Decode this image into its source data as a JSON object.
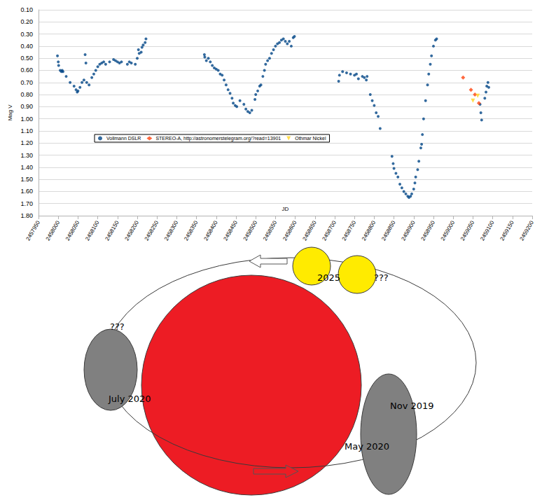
{
  "chart_data": {
    "type": "scatter",
    "x_label": "JD",
    "y_label": "Mag V",
    "xlim": [
      2457950,
      2459200
    ],
    "xticks": [
      2457950,
      2458000,
      2458050,
      2458100,
      2458150,
      2458200,
      2458250,
      2458300,
      2458350,
      2458400,
      2458450,
      2458500,
      2458550,
      2458600,
      2458650,
      2458700,
      2458750,
      2458800,
      2458850,
      2458900,
      2458950,
      2459000,
      2459050,
      2459100,
      2459150,
      2459200
    ],
    "ylim": [
      1.8,
      0.1
    ],
    "yticks": [
      {
        "value": 0.1,
        "label": "0.10"
      },
      {
        "value": 0.2,
        "label": "0.20"
      },
      {
        "value": 0.3,
        "label": "0.30"
      },
      {
        "value": 0.4,
        "label": "0.40"
      },
      {
        "value": 0.5,
        "label": "0.50"
      },
      {
        "value": 0.6,
        "label": "0.60"
      },
      {
        "value": 0.7,
        "label": "0.70"
      },
      {
        "value": 0.8,
        "label": "0.80"
      },
      {
        "value": 0.9,
        "label": "0.90"
      },
      {
        "value": 1.0,
        "label": "1.00"
      },
      {
        "value": 1.1,
        "label": "1.10"
      },
      {
        "value": 1.2,
        "label": "1.20"
      },
      {
        "value": 1.3,
        "label": "1.30"
      },
      {
        "value": 1.4,
        "label": "1.40"
      },
      {
        "value": 1.5,
        "label": "1.50"
      },
      {
        "value": 1.6,
        "label": "1.60"
      },
      {
        "value": 1.7,
        "label": "1.70"
      },
      {
        "value": 1.8,
        "label": "1.80"
      }
    ],
    "grid": true,
    "legend": "center",
    "series": [
      {
        "name": "Vollmann DSLR",
        "color": "#004586",
        "marker": "circle",
        "x": [
          2457998,
          2458000,
          2458001,
          2458005,
          2458008,
          2458010,
          2458012,
          2458020,
          2458030,
          2458040,
          2458045,
          2458048,
          2458050,
          2458055,
          2458060,
          2458065,
          2458068,
          2458070,
          2458072,
          2458078,
          2458085,
          2458090,
          2458095,
          2458100,
          2458105,
          2458110,
          2458115,
          2458120,
          2458130,
          2458140,
          2458145,
          2458150,
          2458155,
          2458160,
          2458175,
          2458180,
          2458185,
          2458195,
          2458200,
          2458203,
          2458205,
          2458210,
          2458212,
          2458215,
          2458220,
          2458222,
          2458370,
          2458371,
          2458375,
          2458380,
          2458385,
          2458390,
          2458395,
          2458400,
          2458405,
          2458410,
          2458415,
          2458420,
          2458425,
          2458430,
          2458435,
          2458440,
          2458443,
          2458448,
          2458452,
          2458460,
          2458470,
          2458475,
          2458480,
          2458485,
          2458490,
          2458498,
          2458500,
          2458505,
          2458510,
          2458513,
          2458518,
          2458522,
          2458525,
          2458530,
          2458535,
          2458540,
          2458545,
          2458550,
          2458555,
          2458560,
          2458565,
          2458570,
          2458575,
          2458580,
          2458585,
          2458590,
          2458595,
          2458598,
          2458710,
          2458712,
          2458720,
          2458730,
          2458740,
          2458750,
          2458755,
          2458760,
          2458770,
          2458775,
          2458780,
          2458782,
          2458790,
          2458795,
          2458800,
          2458805,
          2458810,
          2458815,
          2458845,
          2458848,
          2458850,
          2458855,
          2458860,
          2458865,
          2458870,
          2458875,
          2458880,
          2458885,
          2458888,
          2458892,
          2458895,
          2458900,
          2458903,
          2458905,
          2458910,
          2458913,
          2458918,
          2458920,
          2458922,
          2458925,
          2458930,
          2458935,
          2458938,
          2458942,
          2458945,
          2458950,
          2458955,
          2458958,
          2459068,
          2459070,
          2459072,
          2459080,
          2459083,
          2459085,
          2459088,
          2459090
        ],
        "values": [
          0.48,
          0.53,
          0.56,
          0.6,
          0.61,
          0.6,
          0.61,
          0.65,
          0.7,
          0.73,
          0.76,
          0.78,
          0.77,
          0.74,
          0.7,
          0.68,
          0.47,
          0.54,
          0.7,
          0.72,
          0.66,
          0.63,
          0.6,
          0.57,
          0.55,
          0.54,
          0.53,
          0.55,
          0.53,
          0.51,
          0.52,
          0.53,
          0.54,
          0.53,
          0.55,
          0.53,
          0.54,
          0.55,
          0.5,
          0.43,
          0.46,
          0.45,
          0.41,
          0.39,
          0.37,
          0.34,
          0.47,
          0.49,
          0.52,
          0.5,
          0.53,
          0.56,
          0.58,
          0.59,
          0.6,
          0.63,
          0.64,
          0.68,
          0.72,
          0.76,
          0.79,
          0.83,
          0.87,
          0.89,
          0.9,
          0.85,
          0.88,
          0.92,
          0.94,
          0.95,
          0.93,
          0.84,
          0.8,
          0.77,
          0.73,
          0.72,
          0.65,
          0.6,
          0.55,
          0.52,
          0.5,
          0.46,
          0.43,
          0.4,
          0.38,
          0.37,
          0.35,
          0.34,
          0.36,
          0.38,
          0.36,
          0.4,
          0.33,
          0.32,
          0.69,
          0.64,
          0.61,
          0.62,
          0.63,
          0.64,
          0.63,
          0.67,
          0.65,
          0.66,
          0.68,
          0.65,
          0.8,
          0.85,
          0.89,
          0.95,
          0.98,
          1.08,
          1.31,
          1.37,
          1.41,
          1.45,
          1.48,
          1.54,
          1.57,
          1.6,
          1.62,
          1.64,
          1.65,
          1.64,
          1.62,
          1.58,
          1.53,
          1.48,
          1.42,
          1.35,
          1.24,
          1.21,
          1.13,
          1.0,
          0.85,
          0.72,
          0.63,
          0.55,
          0.48,
          0.4,
          0.35,
          0.34,
          0.88,
          0.95,
          1.01,
          0.83,
          0.78,
          0.73,
          0.7,
          0.74
        ]
      },
      {
        "name": "STEREO-A, http://astronomerstelegram.org/?read=13901",
        "color": "#ff420e",
        "marker": "diamond",
        "x": [
          2459025,
          2459045,
          2459055,
          2459065
        ],
        "values": [
          0.66,
          0.76,
          0.8,
          0.87
        ]
      },
      {
        "name": "Othmar Nickel",
        "color": "#ffd320",
        "marker": "triangle_down",
        "x": [
          2459050,
          2459062
        ],
        "values": [
          0.85,
          0.81
        ]
      }
    ]
  },
  "diagram": {
    "labels": [
      "2025",
      "???",
      "???",
      "July 2020",
      "Nov 2019",
      "May 2020"
    ]
  }
}
